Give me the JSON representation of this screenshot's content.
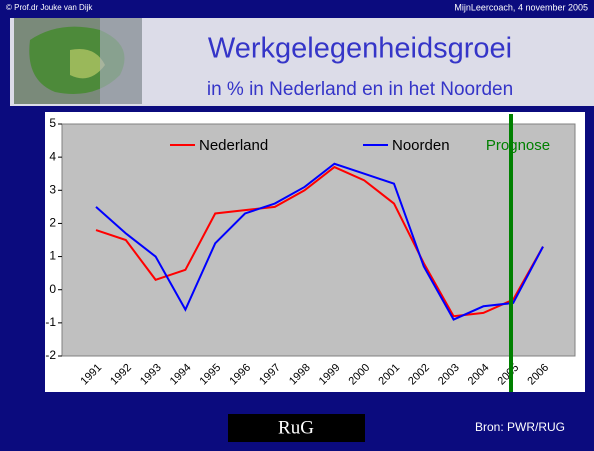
{
  "slide": {
    "copyright": "© Prof.dr Jouke van Dijk",
    "event": "MijnLeercoach, 4 november 2005",
    "source": "Bron: PWR/RUG",
    "logo": "RuG"
  },
  "chart_data": {
    "type": "line",
    "title": "Werkgelegenheidsgroei",
    "subtitle": "in % in Nederland en in het Noorden",
    "annotation": "Prognose",
    "categories": [
      "1991",
      "1992",
      "1993",
      "1994",
      "1995",
      "1996",
      "1997",
      "1998",
      "1999",
      "2000",
      "2001",
      "2002",
      "2003",
      "2004",
      "2005",
      "2006"
    ],
    "series": [
      {
        "name": "Nederland",
        "color": "#ff0000",
        "values": [
          1.8,
          1.5,
          0.3,
          0.6,
          2.3,
          2.4,
          2.5,
          3.0,
          3.7,
          3.3,
          2.6,
          0.8,
          -0.8,
          -0.7,
          -0.3,
          1.3
        ]
      },
      {
        "name": "Noorden",
        "color": "#0000ff",
        "values": [
          2.5,
          1.7,
          1.0,
          -0.6,
          1.4,
          2.3,
          2.6,
          3.1,
          3.8,
          3.5,
          3.2,
          0.7,
          -0.9,
          -0.5,
          -0.4,
          1.3
        ]
      }
    ],
    "ylim": [
      -2,
      5
    ],
    "yticks": [
      -2,
      -1,
      0,
      1,
      2,
      3,
      4,
      5
    ],
    "grid": false
  }
}
